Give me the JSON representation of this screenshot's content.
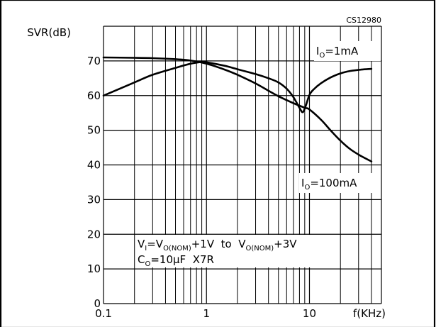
{
  "chart_data": {
    "type": "line",
    "code": "CS12980",
    "ylabel": "SVR(dB)",
    "xlabel": "f(KHz)",
    "xscale": "log",
    "xlim": [
      0.1,
      50
    ],
    "ylim": [
      0,
      80
    ],
    "y_ticks": [
      0,
      10,
      20,
      30,
      40,
      50,
      60,
      70
    ],
    "x_ticks": [
      {
        "value": 0.1,
        "label": "0.1"
      },
      {
        "value": 1,
        "label": "1"
      },
      {
        "value": 10,
        "label": "10"
      }
    ],
    "grid": true,
    "series": [
      {
        "name": "I_O=1mA",
        "label_main": "I",
        "label_sub": "O",
        "label_rest": "=1mA",
        "points": [
          [
            0.1,
            60
          ],
          [
            0.2,
            63.8
          ],
          [
            0.3,
            66
          ],
          [
            0.5,
            68
          ],
          [
            0.7,
            69.2
          ],
          [
            0.9,
            69.7
          ],
          [
            1.0,
            69.6
          ],
          [
            1.5,
            68.6
          ],
          [
            2,
            67.6
          ],
          [
            3,
            66.2
          ],
          [
            4,
            65
          ],
          [
            5,
            63.8
          ],
          [
            6,
            62
          ],
          [
            7,
            59.5
          ],
          [
            8,
            56.5
          ],
          [
            8.6,
            55.2
          ],
          [
            9.2,
            57
          ],
          [
            10,
            60.2
          ],
          [
            11,
            61.8
          ],
          [
            13,
            63.6
          ],
          [
            16,
            65.2
          ],
          [
            20,
            66.4
          ],
          [
            25,
            67.1
          ],
          [
            32,
            67.5
          ],
          [
            40,
            67.7
          ]
        ]
      },
      {
        "name": "I_O=100mA",
        "label_main": "I",
        "label_sub": "O",
        "label_rest": "=100mA",
        "points": [
          [
            0.1,
            71
          ],
          [
            0.2,
            70.9
          ],
          [
            0.3,
            70.8
          ],
          [
            0.5,
            70.5
          ],
          [
            0.7,
            70.1
          ],
          [
            1.0,
            69.2
          ],
          [
            1.5,
            67.5
          ],
          [
            2,
            66
          ],
          [
            3,
            63.5
          ],
          [
            4,
            61.4
          ],
          [
            5,
            59.8
          ],
          [
            7,
            57.8
          ],
          [
            9,
            56.5
          ],
          [
            10,
            56
          ],
          [
            13,
            53
          ],
          [
            16,
            50
          ],
          [
            20,
            47
          ],
          [
            25,
            44.5
          ],
          [
            32,
            42.5
          ],
          [
            40,
            41
          ]
        ]
      }
    ],
    "annotation": {
      "line1": {
        "v1": "V",
        "v1_sub": "I",
        "eq": "=",
        "v2": "V",
        "v2_sub": "O(NOM)",
        "mid": "+1V  to  ",
        "v3": "V",
        "v3_sub": "O(NOM)",
        "end": "+3V"
      },
      "line2": {
        "c": "C",
        "c_sub": "O",
        "rest": "=10μF  X7R"
      }
    }
  }
}
